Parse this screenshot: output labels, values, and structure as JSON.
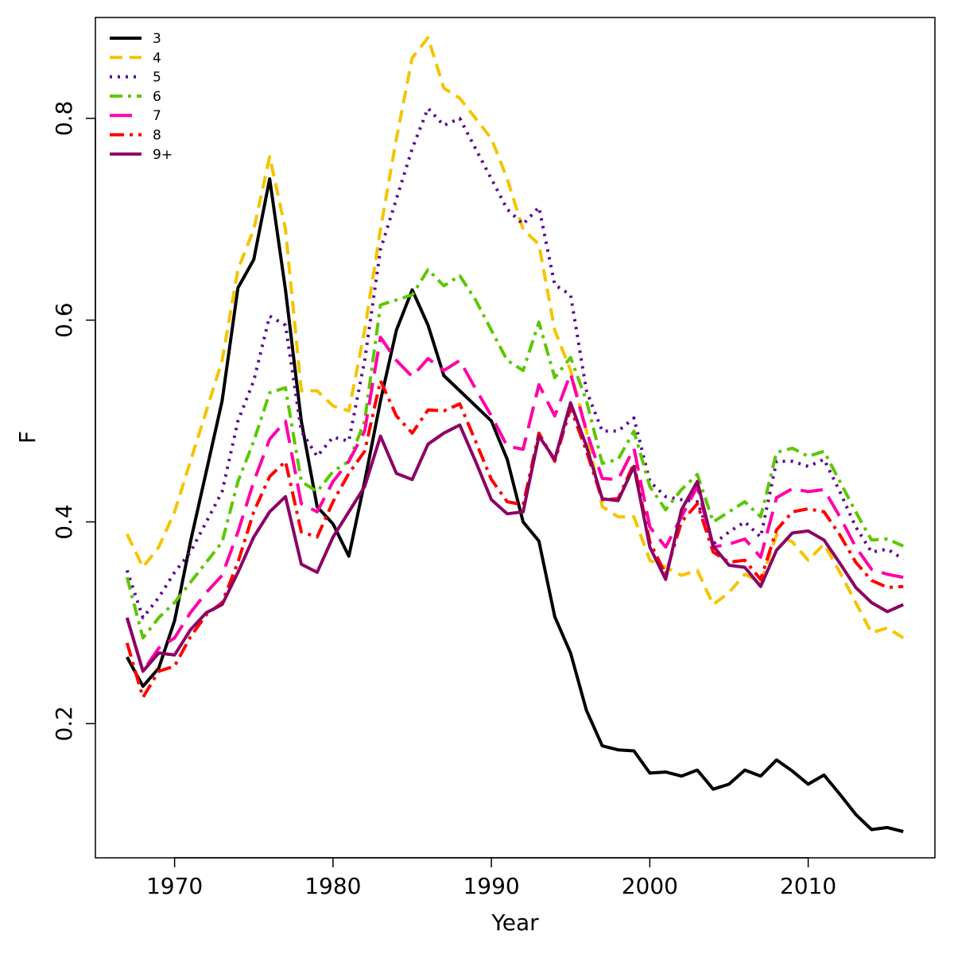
{
  "chart_data": {
    "type": "line",
    "title": "",
    "xlabel": "Year",
    "ylabel": "F",
    "xlim": [
      1965,
      2018
    ],
    "ylim": [
      0.067,
      0.9
    ],
    "x_ticks": [
      1970,
      1980,
      1990,
      2000,
      2010
    ],
    "y_ticks": [
      0.2,
      0.4,
      0.6,
      0.8
    ],
    "grid": false,
    "legend_position": "top-left",
    "x": [
      1967,
      1968,
      1969,
      1970,
      1971,
      1972,
      1973,
      1974,
      1975,
      1976,
      1977,
      1978,
      1979,
      1980,
      1981,
      1982,
      1983,
      1984,
      1985,
      1986,
      1987,
      1988,
      1989,
      1990,
      1991,
      1992,
      1993,
      1994,
      1995,
      1996,
      1997,
      1998,
      1999,
      2000,
      2001,
      2002,
      2003,
      2004,
      2005,
      2006,
      2007,
      2008,
      2009,
      2010,
      2011,
      2012,
      2013,
      2014,
      2015,
      2016
    ],
    "series": [
      {
        "name": "3",
        "color": "#000000",
        "dash": "solid",
        "values": [
          0.266,
          0.237,
          0.255,
          0.302,
          0.38,
          0.45,
          0.52,
          0.632,
          0.66,
          0.74,
          0.63,
          0.5,
          0.415,
          0.398,
          0.366,
          0.44,
          0.52,
          0.59,
          0.63,
          0.595,
          0.545,
          0.53,
          0.515,
          0.5,
          0.462,
          0.4,
          0.381,
          0.306,
          0.27,
          0.213,
          0.178,
          0.174,
          0.173,
          0.151,
          0.152,
          0.148,
          0.154,
          0.135,
          0.14,
          0.154,
          0.148,
          0.164,
          0.153,
          0.14,
          0.149,
          0.13,
          0.11,
          0.095,
          0.097,
          0.093
        ]
      },
      {
        "name": "4",
        "color": "#f5c400",
        "dash": "16 9",
        "values": [
          0.388,
          0.355,
          0.375,
          0.41,
          0.46,
          0.51,
          0.56,
          0.65,
          0.69,
          0.762,
          0.69,
          0.53,
          0.53,
          0.515,
          0.51,
          0.59,
          0.69,
          0.78,
          0.86,
          0.88,
          0.83,
          0.82,
          0.8,
          0.78,
          0.74,
          0.69,
          0.675,
          0.59,
          0.55,
          0.49,
          0.415,
          0.405,
          0.405,
          0.362,
          0.355,
          0.347,
          0.352,
          0.318,
          0.33,
          0.348,
          0.34,
          0.387,
          0.38,
          0.362,
          0.378,
          0.35,
          0.32,
          0.29,
          0.295,
          0.285
        ]
      },
      {
        "name": "5",
        "color": "#5a0696",
        "dash": "3 7",
        "values": [
          0.352,
          0.305,
          0.325,
          0.35,
          0.37,
          0.4,
          0.43,
          0.5,
          0.54,
          0.604,
          0.595,
          0.49,
          0.465,
          0.484,
          0.48,
          0.56,
          0.67,
          0.72,
          0.77,
          0.81,
          0.793,
          0.8,
          0.77,
          0.74,
          0.71,
          0.695,
          0.712,
          0.635,
          0.625,
          0.53,
          0.49,
          0.49,
          0.503,
          0.44,
          0.425,
          0.422,
          0.42,
          0.378,
          0.39,
          0.4,
          0.385,
          0.46,
          0.46,
          0.455,
          0.462,
          0.43,
          0.395,
          0.37,
          0.373,
          0.363
        ]
      },
      {
        "name": "6",
        "color": "#5ac800",
        "dash": "16 7 4 7",
        "values": [
          0.345,
          0.285,
          0.305,
          0.32,
          0.34,
          0.36,
          0.38,
          0.44,
          0.48,
          0.528,
          0.533,
          0.44,
          0.43,
          0.45,
          0.46,
          0.5,
          0.615,
          0.62,
          0.625,
          0.65,
          0.634,
          0.644,
          0.62,
          0.59,
          0.56,
          0.55,
          0.598,
          0.543,
          0.563,
          0.52,
          0.458,
          0.462,
          0.49,
          0.435,
          0.412,
          0.432,
          0.447,
          0.4,
          0.41,
          0.42,
          0.405,
          0.469,
          0.473,
          0.465,
          0.47,
          0.44,
          0.41,
          0.382,
          0.383,
          0.376
        ]
      },
      {
        "name": "7",
        "color": "#ff00a8",
        "dash": "28 12",
        "values": [
          0.305,
          0.252,
          0.275,
          0.285,
          0.31,
          0.33,
          0.347,
          0.39,
          0.44,
          0.482,
          0.5,
          0.418,
          0.41,
          0.44,
          0.46,
          0.49,
          0.583,
          0.56,
          0.544,
          0.562,
          0.55,
          0.56,
          0.532,
          0.505,
          0.475,
          0.472,
          0.536,
          0.505,
          0.547,
          0.49,
          0.443,
          0.442,
          0.473,
          0.395,
          0.375,
          0.405,
          0.435,
          0.375,
          0.378,
          0.383,
          0.365,
          0.424,
          0.433,
          0.43,
          0.432,
          0.405,
          0.375,
          0.353,
          0.348,
          0.345
        ]
      },
      {
        "name": "8",
        "color": "#ff0000",
        "dash": "18 7 4 7",
        "values": [
          0.28,
          0.226,
          0.252,
          0.257,
          0.286,
          0.308,
          0.32,
          0.36,
          0.41,
          0.445,
          0.46,
          0.39,
          0.385,
          0.42,
          0.448,
          0.47,
          0.54,
          0.505,
          0.488,
          0.511,
          0.51,
          0.517,
          0.48,
          0.442,
          0.42,
          0.417,
          0.488,
          0.46,
          0.513,
          0.47,
          0.422,
          0.423,
          0.458,
          0.38,
          0.348,
          0.4,
          0.418,
          0.37,
          0.36,
          0.362,
          0.343,
          0.392,
          0.41,
          0.413,
          0.41,
          0.387,
          0.36,
          0.342,
          0.335,
          0.336
        ]
      },
      {
        "name": "9+",
        "color": "#8c0064",
        "dash": "solid",
        "values": [
          0.305,
          0.252,
          0.27,
          0.268,
          0.293,
          0.31,
          0.318,
          0.35,
          0.385,
          0.41,
          0.425,
          0.358,
          0.35,
          0.385,
          0.41,
          0.435,
          0.485,
          0.448,
          0.442,
          0.477,
          0.488,
          0.496,
          0.46,
          0.422,
          0.408,
          0.41,
          0.485,
          0.462,
          0.518,
          0.475,
          0.423,
          0.421,
          0.455,
          0.375,
          0.343,
          0.412,
          0.44,
          0.376,
          0.357,
          0.355,
          0.336,
          0.372,
          0.389,
          0.391,
          0.382,
          0.359,
          0.335,
          0.32,
          0.311,
          0.318
        ]
      }
    ]
  }
}
